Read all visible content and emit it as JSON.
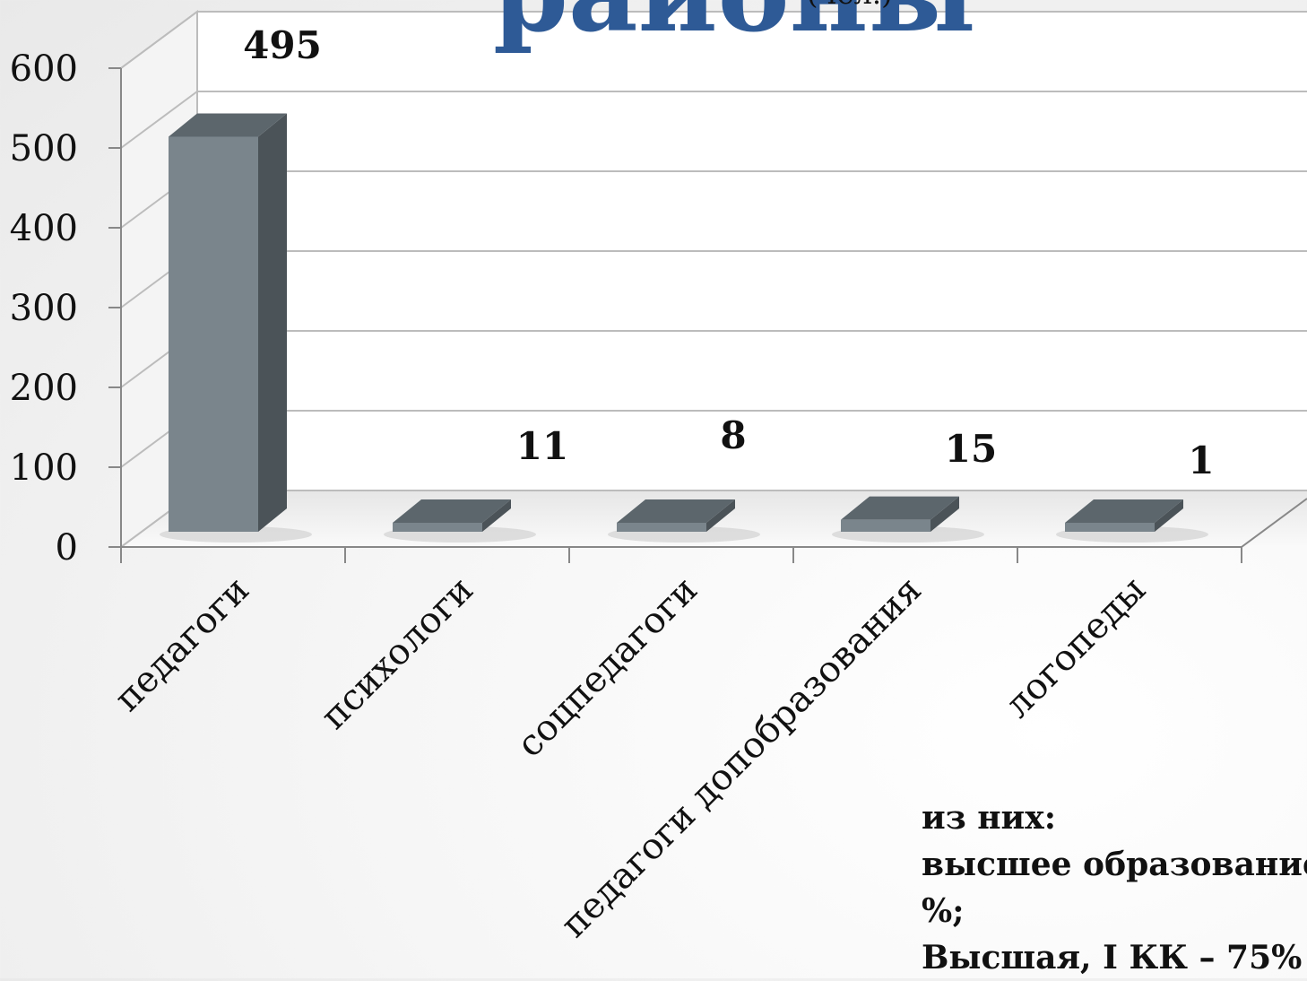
{
  "chart_data": {
    "type": "bar",
    "title": "районы",
    "title_unit": "(чел.)",
    "categories": [
      "педагоги",
      "психологи",
      "соцпедагоги",
      "педагоги допобразования",
      "логопеды"
    ],
    "values": [
      495,
      11,
      8,
      15,
      1
    ],
    "ylim": [
      0,
      600
    ],
    "yticks": [
      0,
      100,
      200,
      300,
      400,
      500,
      600
    ],
    "grid": true,
    "style": "3d-column",
    "colors": {
      "bar_front": "#7a858c",
      "bar_side": "#4b5358",
      "bar_top": "#5c666c",
      "grid": "#bcbcbc"
    }
  },
  "notes": {
    "line1": "из них:",
    "line2": "высшее образование",
    "line3": "%;",
    "line4": "Высшая, I КК – 75%"
  }
}
